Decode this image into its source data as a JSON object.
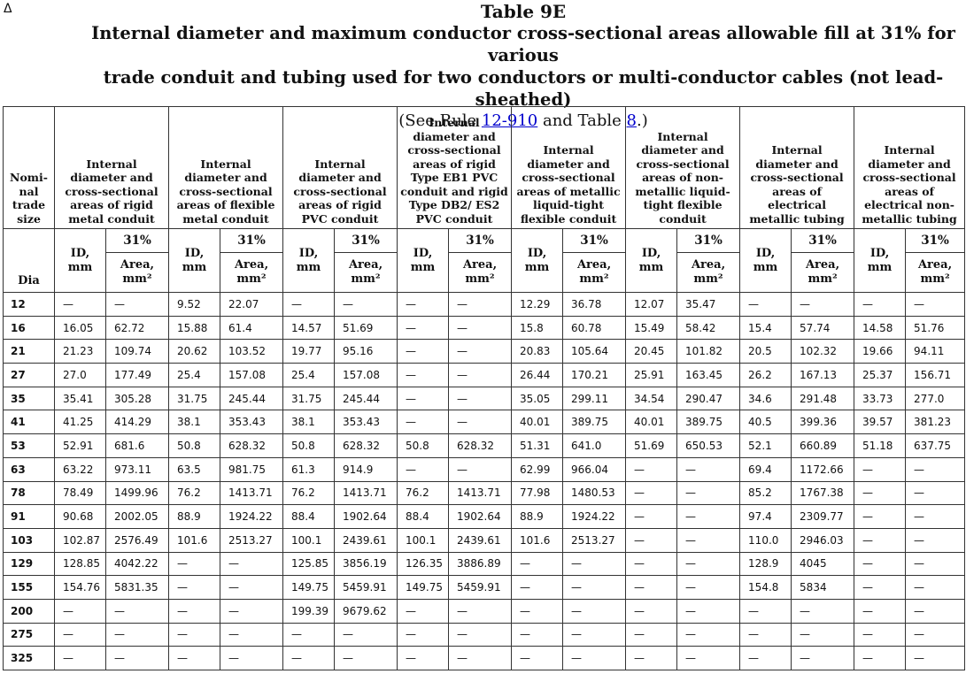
{
  "corner_mark": "Δ",
  "title": "Table 9E",
  "subtitle_line1": "Internal diameter and maximum conductor cross-sectional areas allowable fill at 31% for various",
  "subtitle_line2": "trade conduit and tubing used for two conductors or multi-conductor cables (not lead-sheathed)",
  "see_prefix": "(See Rule ",
  "see_rule_link": "12-910",
  "see_middle": " and Table ",
  "see_table_link": "8",
  "see_suffix": ".)",
  "size_header": "Nomi-nal trade size",
  "dia_label": "Dia",
  "percent_label": "31%",
  "id_label": "ID, mm",
  "area_label": "Area, mm²",
  "column_groups": [
    "Internal diameter and cross-sectional areas of rigid metal conduit",
    "Internal diameter and cross-sectional areas of flexible metal conduit",
    "Internal diameter and cross-sectional areas of rigid PVC conduit",
    "Internal diameter and cross-sectional areas of rigid Type EB1 PVC conduit and rigid Type DB2/ ES2 PVC conduit",
    "Internal diameter and cross-sectional areas of metallic liquid-tight flexible conduit",
    "Internal diameter and cross-sectional areas of non-metallic liquid-tight flexible conduit",
    "Internal diameter and cross-sectional areas of electrical metallic tubing",
    "Internal diameter and cross-sectional areas of electrical non-metallic tubing"
  ],
  "rows": [
    {
      "size": "12",
      "values": [
        "—",
        "—",
        "9.52",
        "22.07",
        "—",
        "—",
        "—",
        "—",
        "12.29",
        "36.78",
        "12.07",
        "35.47",
        "—",
        "—",
        "—",
        "—"
      ]
    },
    {
      "size": "16",
      "values": [
        "16.05",
        "62.72",
        "15.88",
        "61.4",
        "14.57",
        "51.69",
        "—",
        "—",
        "15.8",
        "60.78",
        "15.49",
        "58.42",
        "15.4",
        "57.74",
        "14.58",
        "51.76"
      ]
    },
    {
      "size": "21",
      "values": [
        "21.23",
        "109.74",
        "20.62",
        "103.52",
        "19.77",
        "95.16",
        "—",
        "—",
        "20.83",
        "105.64",
        "20.45",
        "101.82",
        "20.5",
        "102.32",
        "19.66",
        "94.11"
      ]
    },
    {
      "size": "27",
      "values": [
        "27.0",
        "177.49",
        "25.4",
        "157.08",
        "25.4",
        "157.08",
        "—",
        "—",
        "26.44",
        "170.21",
        "25.91",
        "163.45",
        "26.2",
        "167.13",
        "25.37",
        "156.71"
      ]
    },
    {
      "size": "35",
      "values": [
        "35.41",
        "305.28",
        "31.75",
        "245.44",
        "31.75",
        "245.44",
        "—",
        "—",
        "35.05",
        "299.11",
        "34.54",
        "290.47",
        "34.6",
        "291.48",
        "33.73",
        "277.0"
      ]
    },
    {
      "size": "41",
      "values": [
        "41.25",
        "414.29",
        "38.1",
        "353.43",
        "38.1",
        "353.43",
        "—",
        "—",
        "40.01",
        "389.75",
        "40.01",
        "389.75",
        "40.5",
        "399.36",
        "39.57",
        "381.23"
      ]
    },
    {
      "size": "53",
      "values": [
        "52.91",
        "681.6",
        "50.8",
        "628.32",
        "50.8",
        "628.32",
        "50.8",
        "628.32",
        "51.31",
        "641.0",
        "51.69",
        "650.53",
        "52.1",
        "660.89",
        "51.18",
        "637.75"
      ]
    },
    {
      "size": "63",
      "values": [
        "63.22",
        "973.11",
        "63.5",
        "981.75",
        "61.3",
        "914.9",
        "—",
        "—",
        "62.99",
        "966.04",
        "—",
        "—",
        "69.4",
        "1172.66",
        "—",
        "—"
      ]
    },
    {
      "size": "78",
      "values": [
        "78.49",
        "1499.96",
        "76.2",
        "1413.71",
        "76.2",
        "1413.71",
        "76.2",
        "1413.71",
        "77.98",
        "1480.53",
        "—",
        "—",
        "85.2",
        "1767.38",
        "—",
        "—"
      ]
    },
    {
      "size": "91",
      "values": [
        "90.68",
        "2002.05",
        "88.9",
        "1924.22",
        "88.4",
        "1902.64",
        "88.4",
        "1902.64",
        "88.9",
        "1924.22",
        "—",
        "—",
        "97.4",
        "2309.77",
        "—",
        "—"
      ]
    },
    {
      "size": "103",
      "values": [
        "102.87",
        "2576.49",
        "101.6",
        "2513.27",
        "100.1",
        "2439.61",
        "100.1",
        "2439.61",
        "101.6",
        "2513.27",
        "—",
        "—",
        "110.0",
        "2946.03",
        "—",
        "—"
      ]
    },
    {
      "size": "129",
      "values": [
        "128.85",
        "4042.22",
        "—",
        "—",
        "125.85",
        "3856.19",
        "126.35",
        "3886.89",
        "—",
        "—",
        "—",
        "—",
        "128.9",
        "4045",
        "—",
        "—"
      ]
    },
    {
      "size": "155",
      "values": [
        "154.76",
        "5831.35",
        "—",
        "—",
        "149.75",
        "5459.91",
        "149.75",
        "5459.91",
        "—",
        "—",
        "—",
        "—",
        "154.8",
        "5834",
        "—",
        "—"
      ]
    },
    {
      "size": "200",
      "values": [
        "—",
        "—",
        "—",
        "—",
        "199.39",
        "9679.62",
        "—",
        "—",
        "—",
        "—",
        "—",
        "—",
        "—",
        "—",
        "—",
        "—"
      ]
    },
    {
      "size": "275",
      "values": [
        "—",
        "—",
        "—",
        "—",
        "—",
        "—",
        "—",
        "—",
        "—",
        "—",
        "—",
        "—",
        "—",
        "—",
        "—",
        "—"
      ]
    },
    {
      "size": "325",
      "values": [
        "—",
        "—",
        "—",
        "—",
        "—",
        "—",
        "—",
        "—",
        "—",
        "—",
        "—",
        "—",
        "—",
        "—",
        "—",
        "—"
      ]
    }
  ]
}
